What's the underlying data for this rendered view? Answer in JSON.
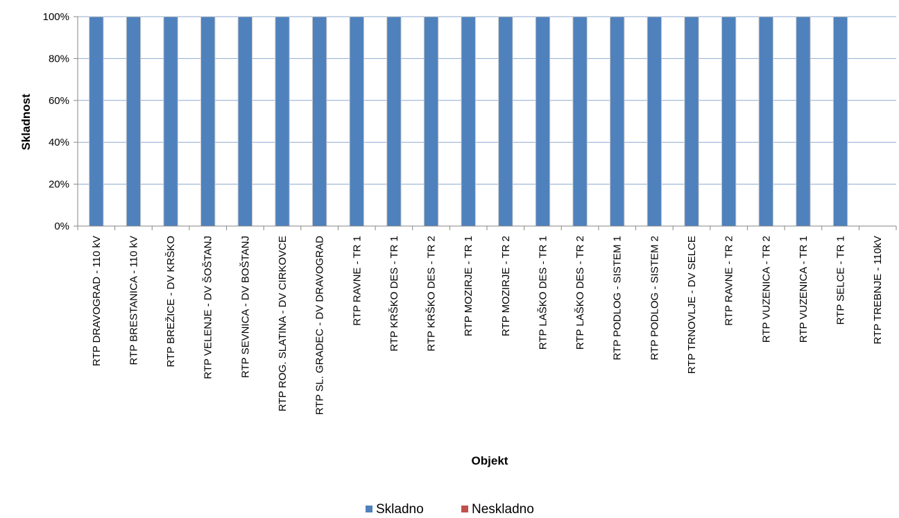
{
  "chart_data": {
    "type": "bar",
    "stacked": true,
    "categories": [
      "RTP DRAVOGRAD - 110 kV",
      "RTP BRESTANICA - 110 kV",
      "RTP BREŽICE - DV KRŠKO",
      "RTP VELENJE - DV ŠOŠTANJ",
      "RTP SEVNICA - DV BOŠTANJ",
      "RTP ROG. SLATINA - DV CIRKOVCE",
      "RTP SL. GRADEC - DV DRAVOGRAD",
      "RTP RAVNE - TR 1",
      "RTP KRŠKO DES - TR 1",
      "RTP KRŠKO DES - TR 2",
      "RTP MOZIRJE - TR 1",
      "RTP MOZIRJE - TR 2",
      "RTP LAŠKO DES - TR 1",
      "RTP LAŠKO DES - TR 2",
      "RTP PODLOG - SISTEM 1",
      "RTP PODLOG - SISTEM 2",
      "RTP TRNOVLJE - DV SELCE",
      "RTP RAVNE - TR 2",
      "RTP VUZENICA - TR 2",
      "RTP VUZENICA - TR 1",
      "RTP SELCE - TR 1",
      "RTP TREBNJE - 110kV"
    ],
    "series": [
      {
        "name": "Skladno",
        "color": "#4F81BD",
        "values": [
          100,
          100,
          100,
          100,
          100,
          100,
          100,
          100,
          100,
          100,
          100,
          100,
          100,
          100,
          100,
          100,
          100,
          100,
          100,
          100,
          100,
          0
        ]
      },
      {
        "name": "Neskladno",
        "color": "#C0504D",
        "values": [
          0,
          0,
          0,
          0,
          0,
          0,
          0,
          0,
          0,
          0,
          0,
          0,
          0,
          0,
          0,
          0,
          0,
          0,
          0,
          0,
          0,
          0
        ]
      }
    ],
    "xlabel": "Objekt",
    "ylabel": "Skladnost",
    "ylim": [
      0,
      100
    ],
    "yticks": [
      0,
      20,
      40,
      60,
      80,
      100
    ],
    "ytick_labels": [
      "0%",
      "20%",
      "40%",
      "60%",
      "80%",
      "100%"
    ],
    "grid": true,
    "legend": "bottom"
  }
}
